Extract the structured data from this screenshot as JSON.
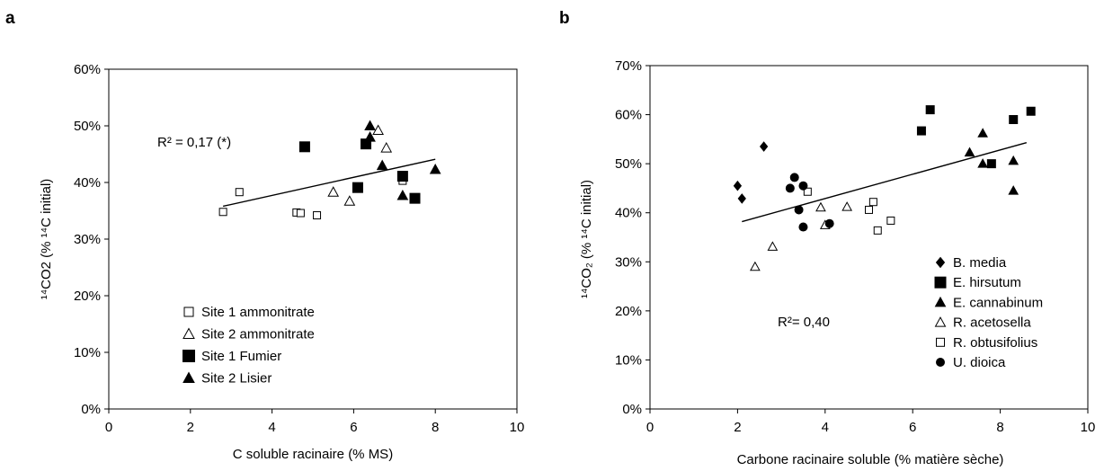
{
  "chart_data": [
    {
      "type": "scatter",
      "panel_label": "a",
      "xlabel": "C soluble racinaire (% MS)",
      "ylabel": "¹⁴CO2 (% ¹⁴C initial)",
      "xlim": [
        0,
        10
      ],
      "ylim": [
        0,
        0.6
      ],
      "x_ticks": [
        "0",
        "2",
        "4",
        "6",
        "8",
        "10"
      ],
      "y_ticks": [
        "0%",
        "10%",
        "20%",
        "30%",
        "40%",
        "50%",
        "60%"
      ],
      "grid": false,
      "legend_position": "bottom-left",
      "annotation": "R² = 0,17 (*)",
      "trendline": {
        "x": [
          2.8,
          8.0
        ],
        "y": [
          0.358,
          0.441
        ]
      },
      "series": [
        {
          "name": "Site 1 ammonitrate",
          "marker": "open-square",
          "x": [
            2.8,
            3.2,
            4.6,
            4.7,
            5.1,
            7.2
          ],
          "y": [
            0.348,
            0.383,
            0.347,
            0.346,
            0.342,
            0.403
          ]
        },
        {
          "name": "Site 2 ammonitrate",
          "marker": "open-triangle",
          "x": [
            5.5,
            5.9,
            6.6,
            6.8
          ],
          "y": [
            0.383,
            0.367,
            0.492,
            0.461
          ]
        },
        {
          "name": "Site 1 Fumier",
          "marker": "filled-square",
          "x": [
            4.8,
            6.1,
            6.3,
            7.2,
            7.5
          ],
          "y": [
            0.463,
            0.391,
            0.468,
            0.411,
            0.372
          ]
        },
        {
          "name": "Site 2 Lisier",
          "marker": "filled-triangle",
          "x": [
            6.4,
            6.4,
            6.7,
            7.2,
            8.0
          ],
          "y": [
            0.5,
            0.48,
            0.43,
            0.377,
            0.423
          ]
        }
      ]
    },
    {
      "type": "scatter",
      "panel_label": "b",
      "xlabel": "Carbone racinaire soluble (% matière sèche)",
      "ylabel": "¹⁴CO₂ (% ¹⁴C initial)",
      "xlim": [
        0,
        10
      ],
      "ylim": [
        0,
        0.7
      ],
      "x_ticks": [
        "0",
        "2",
        "4",
        "6",
        "8",
        "10"
      ],
      "y_ticks": [
        "0%",
        "10%",
        "20%",
        "30%",
        "40%",
        "50%",
        "60%",
        "70%"
      ],
      "grid": false,
      "legend_position": "bottom-right",
      "annotation": "R²= 0,40",
      "trendline": {
        "x": [
          2.1,
          8.6
        ],
        "y": [
          0.382,
          0.543
        ]
      },
      "series": [
        {
          "name": "B. media",
          "marker": "filled-diamond",
          "x": [
            2.0,
            2.1,
            2.6
          ],
          "y": [
            0.455,
            0.429,
            0.535
          ]
        },
        {
          "name": "E. hirsutum",
          "marker": "filled-square",
          "x": [
            6.2,
            6.4,
            7.8,
            8.3,
            8.7
          ],
          "y": [
            0.567,
            0.61,
            0.5,
            0.59,
            0.607
          ]
        },
        {
          "name": "E. cannabinum",
          "marker": "filled-triangle",
          "x": [
            7.3,
            7.6,
            7.6,
            8.3,
            8.3
          ],
          "y": [
            0.523,
            0.562,
            0.5,
            0.506,
            0.445
          ]
        },
        {
          "name": "R. acetosella",
          "marker": "open-triangle",
          "x": [
            2.4,
            2.8,
            3.9,
            4.0,
            4.5
          ],
          "y": [
            0.29,
            0.331,
            0.411,
            0.375,
            0.412
          ]
        },
        {
          "name": "R. obtusifolius",
          "marker": "open-square",
          "x": [
            3.6,
            5.0,
            5.1,
            5.2,
            5.5
          ],
          "y": [
            0.443,
            0.406,
            0.422,
            0.364,
            0.384
          ]
        },
        {
          "name": "U. dioica",
          "marker": "filled-circle",
          "x": [
            3.2,
            3.3,
            3.4,
            3.5,
            3.5,
            4.1
          ],
          "y": [
            0.45,
            0.472,
            0.406,
            0.455,
            0.371,
            0.378
          ]
        }
      ]
    }
  ]
}
